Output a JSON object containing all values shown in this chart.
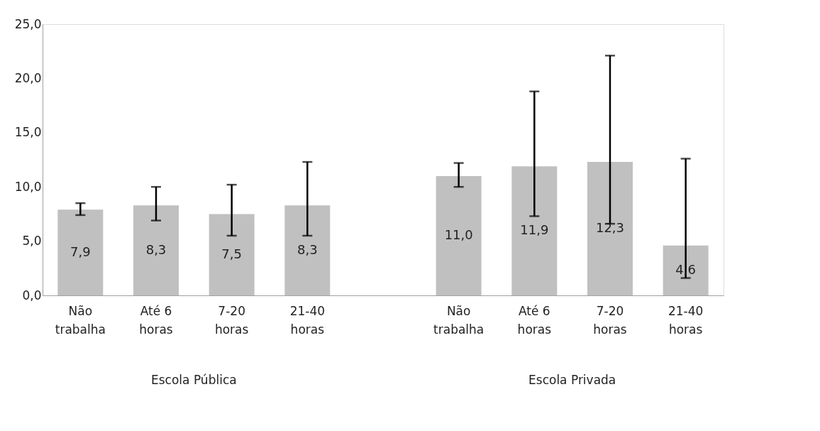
{
  "chart_data": {
    "type": "bar",
    "categories": [
      "Não trabalha",
      "Até 6 horas",
      "7-20 horas",
      "21-40 horas",
      null,
      "Não trabalha",
      "Até 6 horas",
      "7-20 horas",
      "21-40 horas"
    ],
    "values": [
      7.9,
      8.3,
      7.5,
      8.3,
      null,
      11.0,
      11.9,
      12.3,
      4.6
    ],
    "value_labels": [
      "7,9",
      "8,3",
      "7,5",
      "8,3",
      null,
      "11,0",
      "11,9",
      "12,3",
      "4,6"
    ],
    "errors": [
      [
        7.4,
        8.5
      ],
      [
        6.9,
        10.0
      ],
      [
        5.5,
        10.2
      ],
      [
        5.5,
        12.3
      ],
      null,
      [
        10.0,
        12.2
      ],
      [
        7.3,
        18.8
      ],
      [
        6.6,
        22.1
      ],
      [
        1.6,
        12.6
      ]
    ],
    "color": "#c0c0c0",
    "ylim": [
      0,
      25
    ],
    "yticks": [
      {
        "value": 0,
        "label": "0,0"
      },
      {
        "value": 5,
        "label": "5,0"
      },
      {
        "value": 10,
        "label": "10,0"
      },
      {
        "value": 15,
        "label": "15,0"
      },
      {
        "value": 20,
        "label": "20,0"
      },
      {
        "value": 25,
        "label": "25,0"
      }
    ],
    "annotations": [
      "Escola Pública",
      "Escola Privada"
    ],
    "grid": false
  }
}
